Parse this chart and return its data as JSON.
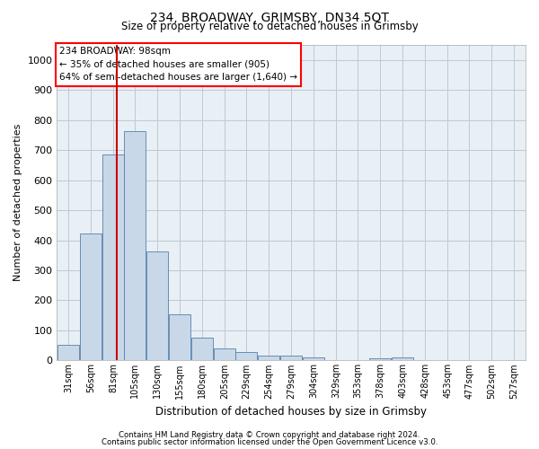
{
  "title": "234, BROADWAY, GRIMSBY, DN34 5QT",
  "subtitle": "Size of property relative to detached houses in Grimsby",
  "xlabel": "Distribution of detached houses by size in Grimsby",
  "ylabel": "Number of detached properties",
  "footer_line1": "Contains HM Land Registry data © Crown copyright and database right 2024.",
  "footer_line2": "Contains public sector information licensed under the Open Government Licence v3.0.",
  "annotation_line1": "234 BROADWAY: 98sqm",
  "annotation_line2": "← 35% of detached houses are smaller (905)",
  "annotation_line3": "64% of semi-detached houses are larger (1,640) →",
  "bar_color": "#c8d8e8",
  "bar_edge_color": "#5580aa",
  "redline_color": "#cc0000",
  "redline_x": 98,
  "categories": [
    "31sqm",
    "56sqm",
    "81sqm",
    "105sqm",
    "130sqm",
    "155sqm",
    "180sqm",
    "205sqm",
    "229sqm",
    "254sqm",
    "279sqm",
    "304sqm",
    "329sqm",
    "353sqm",
    "378sqm",
    "403sqm",
    "428sqm",
    "453sqm",
    "477sqm",
    "502sqm",
    "527sqm"
  ],
  "bin_edges": [
    31,
    56,
    81,
    105,
    130,
    155,
    180,
    205,
    229,
    254,
    279,
    304,
    329,
    353,
    378,
    403,
    428,
    453,
    477,
    502,
    527
  ],
  "bin_width": 25,
  "values": [
    52,
    422,
    685,
    762,
    363,
    155,
    75,
    40,
    27,
    17,
    17,
    10,
    0,
    0,
    8,
    10,
    0,
    0,
    0,
    0,
    0
  ],
  "ylim": [
    0,
    1050
  ],
  "yticks": [
    0,
    100,
    200,
    300,
    400,
    500,
    600,
    700,
    800,
    900,
    1000
  ],
  "bg_color": "#ffffff",
  "plot_bg_color": "#e8eff5",
  "grid_color": "#c0c8d0"
}
